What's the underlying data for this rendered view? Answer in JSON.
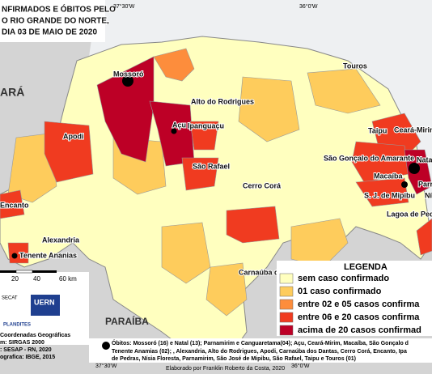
{
  "title": [
    "NFIRMADOS E ÓBITOS PELO",
    "O RIO GRANDE DO NORTE,",
    "DIA 03 DE MAIO DE 2020"
  ],
  "coordinates": {
    "top": [
      "37°30'W",
      "36°0'W"
    ],
    "bottom": [
      "37°30'W",
      "36°0'W"
    ]
  },
  "regions": [
    "ARÁ",
    "PARAÍBA"
  ],
  "places": [
    "Mossoró",
    "Alto do Rodrigues",
    "Touros",
    "Apodi",
    "Açu",
    "Ipanguaçu",
    "Taipu",
    "Ceará-Mirim",
    "São Gonçalo do Amarante",
    "Nata",
    "São Rafael",
    "Macaíba",
    "Parr",
    "S. J. de Mipibu",
    "Nís",
    "Cerro Corá",
    "Lagoa de Pedr",
    "Encanto",
    "Alexandria",
    "Tenente Ananias",
    "Carnaúba dos Dantas"
  ],
  "legend": {
    "title": "LEGENDA",
    "items": [
      "sem caso confirmado",
      "01 caso confirmado",
      "entre 02 e 05 casos confirma",
      "entre 06 e 20 casos confirma",
      "acima de 20 casos confirmad"
    ]
  },
  "scale": [
    "20",
    "40",
    "60 km"
  ],
  "credits": [
    "Coordenadas Geográficas",
    "m: SIRGAS 2000",
    ": SESAP - RN, 2020",
    "ografica: IBGE, 2015"
  ],
  "logos": [
    "SECAT",
    "UERN",
    "PLANDITES"
  ],
  "deaths_note": [
    "Óbitos: Mossoró (16) e Natal (13); Parnamirim e Canguaretama(04); Açu, Ceará-Mirim, Macaíba, São Gonçalo d",
    "Tenente Anamias (02); , Alexandria, Alto do Rodrigues, Apodi, Carnaúba dos Dantas, Cerro Corá, Encanto, Ipa",
    "de Pedras, Nísia Floresta, Parnamirim, São José de Mipibu, São Rafael, Taipu e Touros (01)"
  ],
  "author": "Elaborado por Franklin Roberto da Costa, 2020"
}
